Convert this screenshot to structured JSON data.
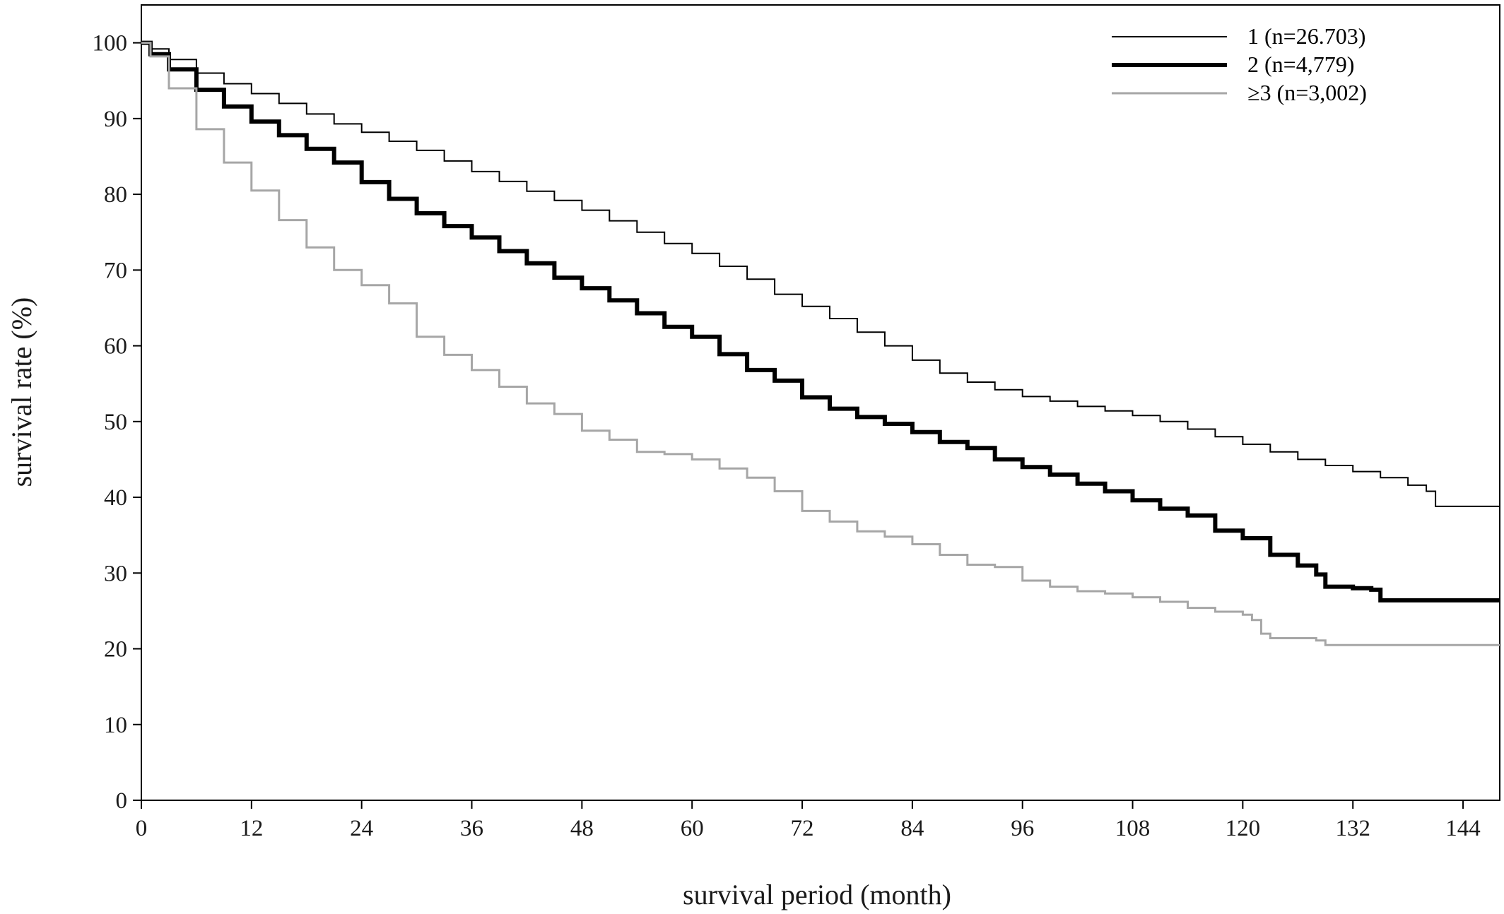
{
  "chart_data": {
    "type": "line",
    "title": "",
    "xlabel": "survival period (month)",
    "ylabel": "survival rate (%)",
    "xlim": [
      0,
      148
    ],
    "ylim": [
      0,
      105
    ],
    "x_ticks": [
      0,
      12,
      24,
      36,
      48,
      60,
      72,
      84,
      96,
      108,
      120,
      132,
      144
    ],
    "y_ticks": [
      0,
      10,
      20,
      30,
      40,
      50,
      60,
      70,
      80,
      90,
      100
    ],
    "grid": false,
    "legend_position": "top-right",
    "series": [
      {
        "name": "1 (n=26.703)",
        "color": "#000000",
        "x": [
          0,
          1,
          3,
          6,
          9,
          12,
          15,
          18,
          21,
          24,
          27,
          30,
          33,
          36,
          39,
          42,
          45,
          48,
          51,
          54,
          57,
          60,
          63,
          66,
          69,
          72,
          75,
          78,
          81,
          84,
          87,
          90,
          93,
          96,
          99,
          102,
          105,
          108,
          111,
          114,
          117,
          120,
          123,
          126,
          129,
          132,
          135,
          138,
          140,
          141,
          144,
          148
        ],
        "values": [
          100,
          99.2,
          97.8,
          96.0,
          94.6,
          93.3,
          92.0,
          90.6,
          89.3,
          88.2,
          87.0,
          85.8,
          84.4,
          83.0,
          81.7,
          80.4,
          79.2,
          77.9,
          76.5,
          75.0,
          73.5,
          72.2,
          70.5,
          68.8,
          66.8,
          65.2,
          63.6,
          61.8,
          60.0,
          58.1,
          56.4,
          55.2,
          54.2,
          53.3,
          52.7,
          52.0,
          51.4,
          50.8,
          50.0,
          49.0,
          48.0,
          47.0,
          46.0,
          45.0,
          44.2,
          43.4,
          42.6,
          41.6,
          40.8,
          38.8,
          38.8,
          38.8
        ]
      },
      {
        "name": "2 (n=4,779)",
        "color": "#000000",
        "x": [
          0,
          1,
          3,
          6,
          9,
          12,
          15,
          18,
          21,
          24,
          27,
          30,
          33,
          36,
          39,
          42,
          45,
          48,
          51,
          54,
          57,
          60,
          63,
          66,
          69,
          72,
          75,
          78,
          81,
          84,
          87,
          90,
          93,
          96,
          99,
          102,
          105,
          108,
          111,
          114,
          117,
          120,
          123,
          126,
          128,
          129,
          132,
          134,
          135,
          140,
          144,
          148
        ],
        "values": [
          100,
          98.5,
          96.5,
          93.8,
          91.6,
          89.6,
          87.8,
          86.0,
          84.2,
          81.6,
          79.4,
          77.5,
          75.8,
          74.3,
          72.5,
          70.9,
          69.0,
          67.6,
          66.0,
          64.3,
          62.5,
          61.2,
          58.9,
          56.8,
          55.4,
          53.2,
          51.7,
          50.6,
          49.7,
          48.6,
          47.3,
          46.5,
          45.0,
          44.0,
          43.0,
          41.8,
          40.8,
          39.6,
          38.5,
          37.6,
          35.6,
          34.6,
          32.4,
          31.0,
          29.8,
          28.2,
          28.0,
          27.8,
          26.4,
          26.4,
          26.4,
          26.4
        ]
      },
      {
        "name": "≥3 (n=3,002)",
        "color": "#a6a6a6",
        "x": [
          0,
          1,
          3,
          6,
          9,
          12,
          15,
          18,
          21,
          24,
          27,
          30,
          33,
          36,
          39,
          42,
          45,
          48,
          51,
          54,
          57,
          60,
          63,
          66,
          69,
          72,
          75,
          78,
          81,
          84,
          87,
          90,
          93,
          96,
          99,
          102,
          105,
          108,
          111,
          114,
          117,
          120,
          121,
          122,
          123,
          126,
          128,
          129,
          132,
          140,
          144,
          148
        ],
        "values": [
          100,
          98.2,
          94.0,
          88.6,
          84.2,
          80.5,
          76.6,
          73.0,
          70.0,
          68.0,
          65.6,
          61.2,
          58.8,
          56.8,
          54.6,
          52.4,
          51.0,
          48.8,
          47.6,
          46.0,
          45.7,
          45.0,
          43.8,
          42.6,
          40.8,
          38.2,
          36.8,
          35.5,
          34.8,
          33.8,
          32.4,
          31.1,
          30.8,
          29.0,
          28.2,
          27.6,
          27.3,
          26.8,
          26.2,
          25.4,
          24.9,
          24.5,
          23.8,
          22.0,
          21.4,
          21.4,
          21.1,
          20.5,
          20.5,
          20.5,
          20.5,
          20.5
        ]
      }
    ]
  }
}
